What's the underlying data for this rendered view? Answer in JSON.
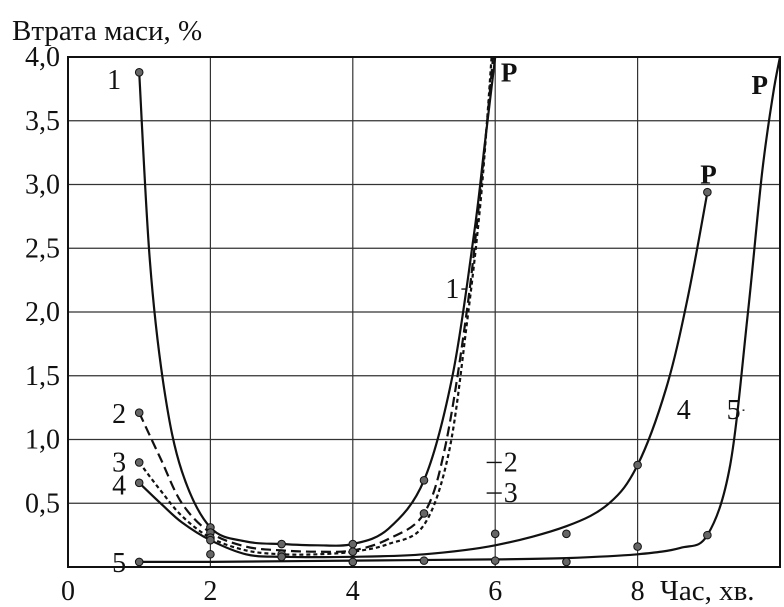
{
  "chart_data": {
    "type": "line",
    "title": "",
    "ylabel": "Втрата маси, %",
    "xlabel": "Час, хв.",
    "xlim": [
      0,
      10
    ],
    "ylim": [
      0,
      4.0
    ],
    "x_ticks": [
      {
        "value": 0,
        "label": "0"
      },
      {
        "value": 2,
        "label": "2"
      },
      {
        "value": 4,
        "label": "4"
      },
      {
        "value": 6,
        "label": "6"
      },
      {
        "value": 8,
        "label": "8"
      }
    ],
    "y_ticks": [
      {
        "value": 0.5,
        "label": "0,5"
      },
      {
        "value": 1.0,
        "label": "1,0"
      },
      {
        "value": 1.5,
        "label": "1,5"
      },
      {
        "value": 2.0,
        "label": "2,0"
      },
      {
        "value": 2.5,
        "label": "2,5"
      },
      {
        "value": 3.0,
        "label": "3,0"
      },
      {
        "value": 3.5,
        "label": "3,5"
      },
      {
        "value": 4.0,
        "label": "4,0"
      }
    ],
    "grid": true,
    "series": [
      {
        "name": "1",
        "dash": "",
        "points": [
          [
            1.0,
            3.88
          ],
          [
            2.0,
            0.31
          ],
          [
            3.0,
            0.18
          ],
          [
            4.0,
            0.18
          ],
          [
            5.0,
            0.68
          ]
        ],
        "curve": [
          [
            1.0,
            3.88
          ],
          [
            1.15,
            2.4
          ],
          [
            1.35,
            1.4
          ],
          [
            1.6,
            0.75
          ],
          [
            2.0,
            0.31
          ],
          [
            2.5,
            0.2
          ],
          [
            3.0,
            0.18
          ],
          [
            3.5,
            0.17
          ],
          [
            4.0,
            0.18
          ],
          [
            4.5,
            0.3
          ],
          [
            5.0,
            0.68
          ],
          [
            5.4,
            1.5
          ],
          [
            5.7,
            2.6
          ],
          [
            5.85,
            3.3
          ],
          [
            6.0,
            4.0
          ]
        ],
        "end_label": "P",
        "end_label_at": [
          6.08,
          3.88
        ]
      },
      {
        "name": "2",
        "dash": "10,5",
        "points": [
          [
            1.0,
            1.21
          ],
          [
            2.0,
            0.27
          ],
          [
            5.0,
            0.42
          ]
        ],
        "curve": [
          [
            1.0,
            1.21
          ],
          [
            1.3,
            0.85
          ],
          [
            1.6,
            0.5
          ],
          [
            2.0,
            0.27
          ],
          [
            2.5,
            0.16
          ],
          [
            3.0,
            0.13
          ],
          [
            3.5,
            0.12
          ],
          [
            4.0,
            0.13
          ],
          [
            4.5,
            0.22
          ],
          [
            5.0,
            0.42
          ],
          [
            5.3,
            0.95
          ],
          [
            5.6,
            2.0
          ],
          [
            5.8,
            3.0
          ],
          [
            5.97,
            4.0
          ]
        ],
        "end_label": "",
        "end_label_at": null
      },
      {
        "name": "3",
        "dash": "4,3",
        "points": [
          [
            1.0,
            0.82
          ],
          [
            2.0,
            0.23
          ],
          [
            3.0,
            0.1
          ],
          [
            4.0,
            0.12
          ]
        ],
        "curve": [
          [
            1.0,
            0.82
          ],
          [
            1.3,
            0.6
          ],
          [
            1.6,
            0.4
          ],
          [
            2.0,
            0.23
          ],
          [
            2.5,
            0.13
          ],
          [
            3.0,
            0.1
          ],
          [
            3.5,
            0.1
          ],
          [
            4.0,
            0.12
          ],
          [
            4.5,
            0.18
          ],
          [
            5.0,
            0.33
          ],
          [
            5.35,
            0.9
          ],
          [
            5.6,
            1.9
          ],
          [
            5.8,
            2.9
          ],
          [
            5.95,
            4.0
          ]
        ],
        "end_label": "",
        "end_label_at": null
      },
      {
        "name": "4",
        "dash": "",
        "points": [
          [
            1.0,
            0.66
          ],
          [
            2.0,
            0.21
          ],
          [
            3.0,
            0.08
          ],
          [
            6.0,
            0.26
          ],
          [
            7.0,
            0.26
          ],
          [
            8.0,
            0.8
          ],
          [
            8.98,
            2.94
          ]
        ],
        "curve": [
          [
            1.0,
            0.66
          ],
          [
            1.3,
            0.5
          ],
          [
            1.6,
            0.35
          ],
          [
            2.0,
            0.21
          ],
          [
            2.5,
            0.1
          ],
          [
            3.0,
            0.08
          ],
          [
            4.0,
            0.08
          ],
          [
            5.0,
            0.1
          ],
          [
            6.0,
            0.17
          ],
          [
            7.0,
            0.32
          ],
          [
            7.6,
            0.5
          ],
          [
            8.0,
            0.8
          ],
          [
            8.4,
            1.4
          ],
          [
            8.7,
            2.1
          ],
          [
            8.98,
            2.94
          ]
        ],
        "end_label": "P",
        "end_label_at": [
          8.88,
          3.08
        ]
      },
      {
        "name": "5",
        "dash": "",
        "points": [
          [
            1.0,
            0.04
          ],
          [
            2.0,
            0.1
          ],
          [
            4.0,
            0.04
          ],
          [
            5.0,
            0.05
          ],
          [
            6.0,
            0.05
          ],
          [
            7.0,
            0.04
          ],
          [
            8.0,
            0.16
          ],
          [
            8.98,
            0.25
          ]
        ],
        "curve": [
          [
            1.0,
            0.04
          ],
          [
            2.0,
            0.04
          ],
          [
            4.0,
            0.05
          ],
          [
            6.0,
            0.06
          ],
          [
            7.0,
            0.07
          ],
          [
            8.0,
            0.1
          ],
          [
            8.6,
            0.15
          ],
          [
            8.98,
            0.25
          ],
          [
            9.3,
            0.8
          ],
          [
            9.55,
            2.0
          ],
          [
            9.75,
            3.1
          ],
          [
            9.9,
            3.7
          ],
          [
            10.0,
            4.0
          ]
        ],
        "end_label": "P",
        "end_label_at": [
          9.6,
          3.78
        ]
      }
    ],
    "curve_labels": [
      {
        "text": "1",
        "at": [
          0.55,
          3.82
        ],
        "leader": false
      },
      {
        "text": "2",
        "at": [
          0.62,
          1.2
        ],
        "leader": false
      },
      {
        "text": "3",
        "at": [
          0.62,
          0.82
        ],
        "leader": false
      },
      {
        "text": "4",
        "at": [
          0.62,
          0.64
        ],
        "leader": false
      },
      {
        "text": "5",
        "at": [
          0.62,
          0.03
        ],
        "leader": false
      },
      {
        "text": "1",
        "at": [
          5.3,
          2.18
        ],
        "leader": true,
        "leader_to": [
          5.6,
          2.18
        ]
      },
      {
        "text": "2",
        "at": [
          6.12,
          0.82
        ],
        "leader": true,
        "leader_to": [
          5.88,
          0.82
        ]
      },
      {
        "text": "3",
        "at": [
          6.12,
          0.58
        ],
        "leader": true,
        "leader_to": [
          5.88,
          0.58
        ]
      },
      {
        "text": "4",
        "at": [
          8.55,
          1.23
        ],
        "leader": false
      },
      {
        "text": "5",
        "at": [
          9.25,
          1.23
        ],
        "leader": true,
        "leader_to": [
          9.5,
          1.23
        ]
      }
    ]
  }
}
